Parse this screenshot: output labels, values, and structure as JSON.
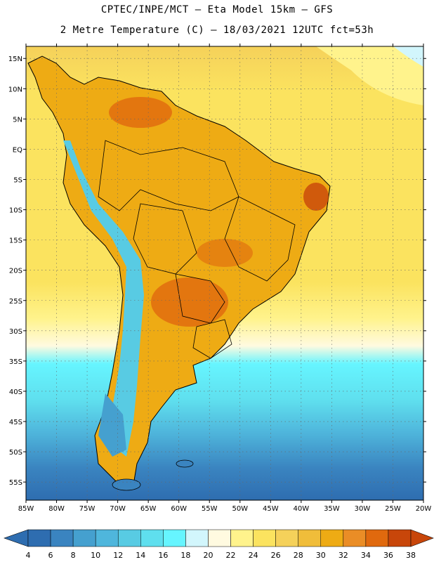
{
  "header": {
    "line1": "CPTEC/INPE/MCT –  Eta Model 15km – GFS",
    "line2": "2 Metre Temperature (C) – 18/03/2021 12UTC fct=53h"
  },
  "map": {
    "region": "South America",
    "lon_range": [
      -85,
      -20
    ],
    "lat_range": [
      -58,
      17
    ],
    "lat_ticks": [
      {
        "value": 15,
        "label": "15N"
      },
      {
        "value": 10,
        "label": "10N"
      },
      {
        "value": 5,
        "label": "5N"
      },
      {
        "value": 0,
        "label": "EQ"
      },
      {
        "value": -5,
        "label": "5S"
      },
      {
        "value": -10,
        "label": "10S"
      },
      {
        "value": -15,
        "label": "15S"
      },
      {
        "value": -20,
        "label": "20S"
      },
      {
        "value": -25,
        "label": "25S"
      },
      {
        "value": -30,
        "label": "30S"
      },
      {
        "value": -35,
        "label": "35S"
      },
      {
        "value": -40,
        "label": "40S"
      },
      {
        "value": -45,
        "label": "45S"
      },
      {
        "value": -50,
        "label": "50S"
      },
      {
        "value": -55,
        "label": "55S"
      }
    ],
    "lon_ticks": [
      {
        "value": -85,
        "label": "85W"
      },
      {
        "value": -80,
        "label": "80W"
      },
      {
        "value": -75,
        "label": "75W"
      },
      {
        "value": -70,
        "label": "70W"
      },
      {
        "value": -65,
        "label": "65W"
      },
      {
        "value": -60,
        "label": "60W"
      },
      {
        "value": -55,
        "label": "55W"
      },
      {
        "value": -50,
        "label": "50W"
      },
      {
        "value": -45,
        "label": "45W"
      },
      {
        "value": -40,
        "label": "40W"
      },
      {
        "value": -35,
        "label": "35W"
      },
      {
        "value": -30,
        "label": "30W"
      },
      {
        "value": -25,
        "label": "25W"
      },
      {
        "value": -20,
        "label": "20W"
      }
    ]
  },
  "colorbar": {
    "labels": [
      "4",
      "6",
      "8",
      "10",
      "12",
      "14",
      "16",
      "18",
      "20",
      "22",
      "24",
      "26",
      "28",
      "30",
      "32",
      "34",
      "36",
      "38"
    ],
    "colors": [
      "#2e6db0",
      "#3a84c0",
      "#45a0cf",
      "#4fb6dc",
      "#58cbe3",
      "#5fdfee",
      "#66f5ff",
      "#d2f6fc",
      "#fffae0",
      "#fff38c",
      "#fbe35f",
      "#f5d15a",
      "#f0bd3a",
      "#eeab14",
      "#ea8d26",
      "#e0690e",
      "#c8460a"
    ],
    "low_color": "#2e6db0",
    "high_color": "#c8460a"
  }
}
